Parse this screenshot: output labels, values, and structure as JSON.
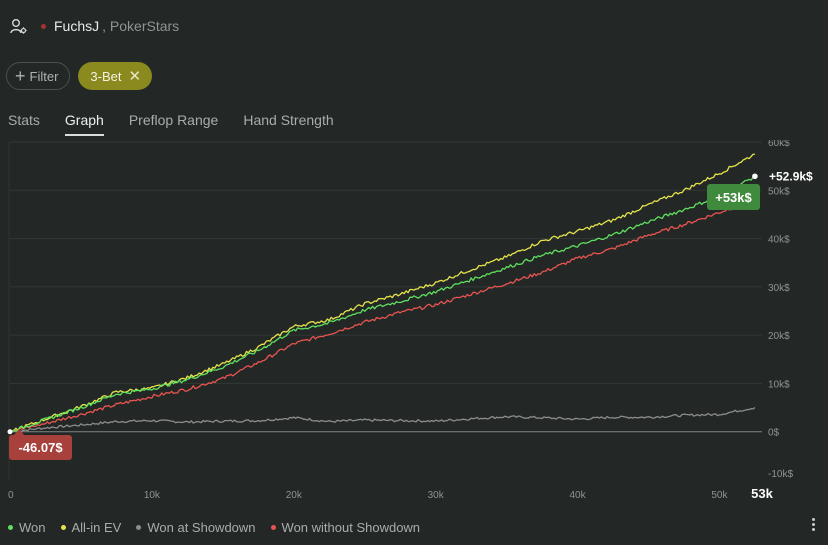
{
  "header": {
    "player": "FuchsJ",
    "site": ", PokerStars"
  },
  "filters": {
    "filter_label": "Filter",
    "chip_label": "3-Bet"
  },
  "tabs": [
    {
      "label": "Stats",
      "active": false
    },
    {
      "label": "Graph",
      "active": true
    },
    {
      "label": "Preflop Range",
      "active": false
    },
    {
      "label": "Hand Strength",
      "active": false
    }
  ],
  "chart_data": {
    "type": "line",
    "title": "",
    "xlabel": "",
    "ylabel": "",
    "xlim": [
      0,
      53000
    ],
    "ylim": [
      -10000,
      60000
    ],
    "x_ticks": [
      "0",
      "10k",
      "20k",
      "30k",
      "40k",
      "50k",
      "53k"
    ],
    "y_ticks": [
      "60k$",
      "50k$",
      "40k$",
      "30k$",
      "20k$",
      "10k$",
      "0$",
      "-10k$"
    ],
    "grid": true,
    "legend_position": "bottom-left",
    "start_label": "-46.07$",
    "end_badge": "+53k$",
    "end_value_label": "+52.9k$",
    "x": [
      0,
      2500,
      5000,
      7500,
      10000,
      12500,
      15000,
      17500,
      20000,
      22500,
      25000,
      27500,
      30000,
      32500,
      35000,
      37500,
      40000,
      42500,
      45000,
      47500,
      50000,
      52500
    ],
    "series": [
      {
        "name": "Won",
        "color": "#5fe05f",
        "values": [
          0,
          2500,
          5000,
          7800,
          8900,
          10800,
          13400,
          16800,
          21000,
          22500,
          25200,
          27000,
          29000,
          31500,
          34000,
          36500,
          38500,
          40800,
          43500,
          46000,
          48800,
          52900
        ]
      },
      {
        "name": "All-in EV",
        "color": "#e4e44a",
        "values": [
          0,
          2600,
          5200,
          8200,
          9000,
          11200,
          14000,
          17500,
          21800,
          23200,
          26500,
          28500,
          30800,
          33600,
          36200,
          39500,
          41500,
          43800,
          47000,
          50000,
          53500,
          57500
        ]
      },
      {
        "name": "Won at Showdown",
        "color": "#8d8d8d",
        "values": [
          0,
          800,
          1400,
          2100,
          2300,
          2000,
          2200,
          2300,
          2900,
          2100,
          2400,
          2300,
          2200,
          2700,
          3100,
          2900,
          2600,
          3000,
          3000,
          3400,
          3600,
          5000
        ]
      },
      {
        "name": "Won without Showdown",
        "color": "#e85550",
        "values": [
          0,
          1700,
          3600,
          5600,
          7300,
          8800,
          11000,
          14300,
          18200,
          20300,
          22700,
          24700,
          26300,
          28500,
          30700,
          33000,
          35900,
          37900,
          40700,
          42900,
          45400,
          48200
        ]
      }
    ]
  }
}
